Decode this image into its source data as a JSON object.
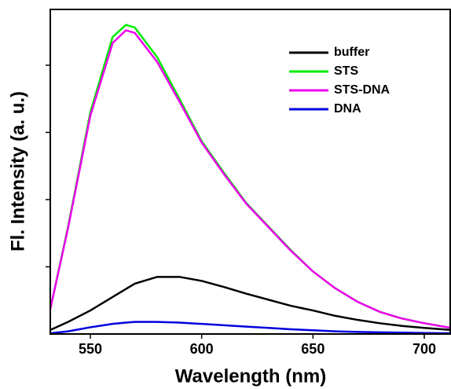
{
  "chart_data": {
    "type": "line",
    "x_label": "Wavelength (nm)",
    "y_label": "Fl. Intensity (a. u.)",
    "x": [
      532,
      540,
      550,
      560,
      566,
      570,
      580,
      590,
      600,
      610,
      620,
      630,
      640,
      650,
      660,
      670,
      680,
      690,
      700,
      712
    ],
    "series": [
      {
        "name": "buffer",
        "color": "#000000",
        "values": [
          0.06,
          0.18,
          0.35,
          0.55,
          0.67,
          0.75,
          0.85,
          0.85,
          0.79,
          0.7,
          0.6,
          0.51,
          0.42,
          0.35,
          0.27,
          0.21,
          0.16,
          0.12,
          0.09,
          0.06
        ]
      },
      {
        "name": "STS",
        "color": "#00ee00",
        "values": [
          0.37,
          1.6,
          3.3,
          4.42,
          4.6,
          4.56,
          4.12,
          3.5,
          2.87,
          2.4,
          1.95,
          1.6,
          1.25,
          0.93,
          0.68,
          0.48,
          0.33,
          0.23,
          0.16,
          0.09
        ]
      },
      {
        "name": "STS-DNA",
        "color": "#ee00ee",
        "values": [
          0.37,
          1.58,
          3.25,
          4.33,
          4.52,
          4.48,
          4.05,
          3.46,
          2.85,
          2.38,
          1.94,
          1.59,
          1.24,
          0.93,
          0.68,
          0.48,
          0.33,
          0.23,
          0.16,
          0.09
        ]
      },
      {
        "name": "DNA",
        "color": "#0000dd",
        "values": [
          0.01,
          0.04,
          0.1,
          0.15,
          0.17,
          0.18,
          0.18,
          0.17,
          0.15,
          0.13,
          0.11,
          0.09,
          0.07,
          0.055,
          0.04,
          0.03,
          0.025,
          0.02,
          0.015,
          0.01
        ]
      }
    ],
    "xlim": [
      532,
      712
    ],
    "xticks": [
      550,
      600,
      650,
      700
    ],
    "ylim": [
      0,
      4.83
    ],
    "yticks": [
      1,
      2,
      3,
      4
    ],
    "legend": "upper right"
  }
}
